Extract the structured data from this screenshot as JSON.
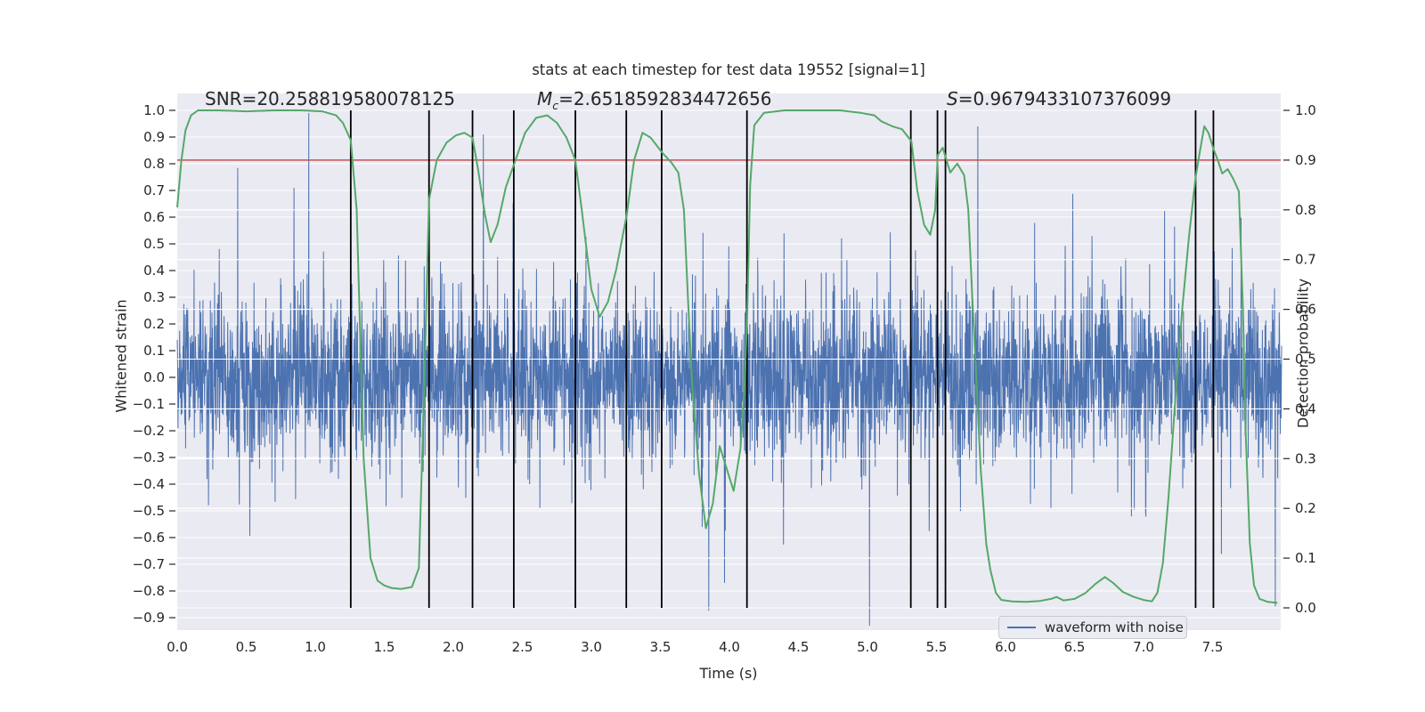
{
  "chart_data": {
    "type": "line",
    "title": "stats at each timestep for test data 19552 [signal=1]",
    "xlabel": "Time (s)",
    "ylabel_left": "Whitened strain",
    "ylabel_right": "Detection probability",
    "x_ticks": [
      0.0,
      0.5,
      1.0,
      1.5,
      2.0,
      2.5,
      3.0,
      3.5,
      4.0,
      4.5,
      5.0,
      5.5,
      6.0,
      6.5,
      7.0,
      7.5
    ],
    "left_ticks": [
      1.0,
      0.9,
      0.8,
      0.7,
      0.6,
      0.5,
      0.4,
      0.3,
      0.2,
      0.1,
      0.0,
      -0.1,
      -0.2,
      -0.3,
      -0.4,
      -0.5,
      -0.6,
      -0.7,
      -0.8,
      -0.9
    ],
    "right_ticks": [
      1.0,
      0.9,
      0.8,
      0.7,
      0.6,
      0.5,
      0.4,
      0.3,
      0.2,
      0.1,
      0.0
    ],
    "xlim": [
      0.0,
      8.0
    ],
    "left_ylim": [
      -0.947,
      1.063
    ],
    "right_ylim": [
      -0.045,
      1.034
    ],
    "grid": true,
    "legend_position": "lower right",
    "colors": {
      "background_axes": "#eaeaf2",
      "grid": "#ffffff",
      "waveform": "#4c72b0",
      "probability": "#55a868",
      "threshold": "#c44e52",
      "vline": "#000000",
      "text": "#262626"
    },
    "annotations": [
      {
        "name": "snr",
        "prefix": "SNR",
        "sub": "",
        "rest": "=20.258819580078125"
      },
      {
        "name": "chirp-mass",
        "prefix": "M",
        "sub": "c",
        "rest": "=2.6518592834472656"
      },
      {
        "name": "significance",
        "prefix": "S",
        "sub": "",
        "rest": "=0.9679433107376099"
      }
    ],
    "threshold": {
      "axis": "right",
      "value": 0.9
    },
    "vlines": {
      "axis": "right",
      "span": [
        0.0,
        1.0
      ],
      "times": [
        1.257,
        1.824,
        2.139,
        2.438,
        2.884,
        3.253,
        3.509,
        4.127,
        5.314,
        5.507,
        5.565,
        7.377,
        7.506
      ]
    },
    "detection_probability": {
      "axis": "right",
      "points": [
        [
          0.0,
          0.805
        ],
        [
          0.03,
          0.9
        ],
        [
          0.06,
          0.96
        ],
        [
          0.1,
          0.99
        ],
        [
          0.15,
          1.0
        ],
        [
          0.3,
          1.0
        ],
        [
          0.5,
          0.998
        ],
        [
          0.7,
          1.0
        ],
        [
          0.9,
          1.0
        ],
        [
          1.05,
          0.998
        ],
        [
          1.15,
          0.99
        ],
        [
          1.2,
          0.975
        ],
        [
          1.257,
          0.94
        ],
        [
          1.3,
          0.8
        ],
        [
          1.32,
          0.6
        ],
        [
          1.35,
          0.3
        ],
        [
          1.4,
          0.1
        ],
        [
          1.45,
          0.055
        ],
        [
          1.5,
          0.045
        ],
        [
          1.55,
          0.04
        ],
        [
          1.62,
          0.038
        ],
        [
          1.7,
          0.042
        ],
        [
          1.75,
          0.08
        ],
        [
          1.79,
          0.45
        ],
        [
          1.824,
          0.82
        ],
        [
          1.88,
          0.9
        ],
        [
          1.95,
          0.935
        ],
        [
          2.02,
          0.95
        ],
        [
          2.08,
          0.955
        ],
        [
          2.139,
          0.945
        ],
        [
          2.18,
          0.88
        ],
        [
          2.23,
          0.79
        ],
        [
          2.27,
          0.735
        ],
        [
          2.32,
          0.77
        ],
        [
          2.38,
          0.845
        ],
        [
          2.45,
          0.9
        ],
        [
          2.52,
          0.955
        ],
        [
          2.6,
          0.985
        ],
        [
          2.68,
          0.99
        ],
        [
          2.75,
          0.975
        ],
        [
          2.82,
          0.945
        ],
        [
          2.884,
          0.9
        ],
        [
          2.93,
          0.8
        ],
        [
          3.0,
          0.64
        ],
        [
          3.06,
          0.585
        ],
        [
          3.12,
          0.615
        ],
        [
          3.18,
          0.68
        ],
        [
          3.256,
          0.79
        ],
        [
          3.31,
          0.9
        ],
        [
          3.37,
          0.955
        ],
        [
          3.43,
          0.945
        ],
        [
          3.513,
          0.915
        ],
        [
          3.58,
          0.895
        ],
        [
          3.63,
          0.875
        ],
        [
          3.67,
          0.8
        ],
        [
          3.7,
          0.62
        ],
        [
          3.73,
          0.45
        ],
        [
          3.78,
          0.27
        ],
        [
          3.83,
          0.16
        ],
        [
          3.88,
          0.21
        ],
        [
          3.93,
          0.325
        ],
        [
          3.98,
          0.28
        ],
        [
          4.03,
          0.235
        ],
        [
          4.08,
          0.32
        ],
        [
          4.11,
          0.45
        ],
        [
          4.13,
          0.6
        ],
        [
          4.15,
          0.85
        ],
        [
          4.18,
          0.97
        ],
        [
          4.25,
          0.995
        ],
        [
          4.4,
          1.0
        ],
        [
          4.6,
          1.0
        ],
        [
          4.8,
          1.0
        ],
        [
          4.95,
          0.995
        ],
        [
          5.05,
          0.99
        ],
        [
          5.1,
          0.978
        ],
        [
          5.18,
          0.968
        ],
        [
          5.25,
          0.962
        ],
        [
          5.318,
          0.938
        ],
        [
          5.36,
          0.84
        ],
        [
          5.41,
          0.77
        ],
        [
          5.455,
          0.75
        ],
        [
          5.49,
          0.8
        ],
        [
          5.509,
          0.91
        ],
        [
          5.545,
          0.925
        ],
        [
          5.6,
          0.875
        ],
        [
          5.65,
          0.893
        ],
        [
          5.7,
          0.87
        ],
        [
          5.73,
          0.8
        ],
        [
          5.76,
          0.62
        ],
        [
          5.79,
          0.45
        ],
        [
          5.82,
          0.28
        ],
        [
          5.86,
          0.13
        ],
        [
          5.89,
          0.077
        ],
        [
          5.93,
          0.03
        ],
        [
          5.97,
          0.016
        ],
        [
          6.05,
          0.013
        ],
        [
          6.15,
          0.012
        ],
        [
          6.25,
          0.014
        ],
        [
          6.33,
          0.018
        ],
        [
          6.37,
          0.022
        ],
        [
          6.42,
          0.015
        ],
        [
          6.5,
          0.018
        ],
        [
          6.58,
          0.03
        ],
        [
          6.65,
          0.048
        ],
        [
          6.72,
          0.062
        ],
        [
          6.78,
          0.05
        ],
        [
          6.85,
          0.032
        ],
        [
          6.93,
          0.022
        ],
        [
          7.0,
          0.016
        ],
        [
          7.06,
          0.013
        ],
        [
          7.1,
          0.03
        ],
        [
          7.14,
          0.09
        ],
        [
          7.18,
          0.22
        ],
        [
          7.23,
          0.42
        ],
        [
          7.28,
          0.6
        ],
        [
          7.33,
          0.75
        ],
        [
          7.377,
          0.865
        ],
        [
          7.41,
          0.92
        ],
        [
          7.44,
          0.968
        ],
        [
          7.47,
          0.955
        ],
        [
          7.506,
          0.923
        ],
        [
          7.54,
          0.898
        ],
        [
          7.57,
          0.873
        ],
        [
          7.61,
          0.882
        ],
        [
          7.65,
          0.862
        ],
        [
          7.69,
          0.837
        ],
        [
          7.72,
          0.6
        ],
        [
          7.74,
          0.35
        ],
        [
          7.77,
          0.13
        ],
        [
          7.8,
          0.045
        ],
        [
          7.84,
          0.018
        ],
        [
          7.9,
          0.012
        ],
        [
          7.97,
          0.01
        ]
      ]
    },
    "waveform": {
      "axis": "left",
      "label": "waveform with noise",
      "seed": 19552,
      "n": 4200,
      "sigma_core": 0.145,
      "sigma_mid": 0.25,
      "sigma_tail": 0.42,
      "p_mid": 0.105,
      "p_tail": 0.015,
      "clamp": 0.93,
      "spikes": [
        [
          0.953,
          0.99
        ],
        [
          2.218,
          0.91
        ],
        [
          3.965,
          -0.77
        ],
        [
          5.8,
          0.94
        ]
      ]
    }
  }
}
